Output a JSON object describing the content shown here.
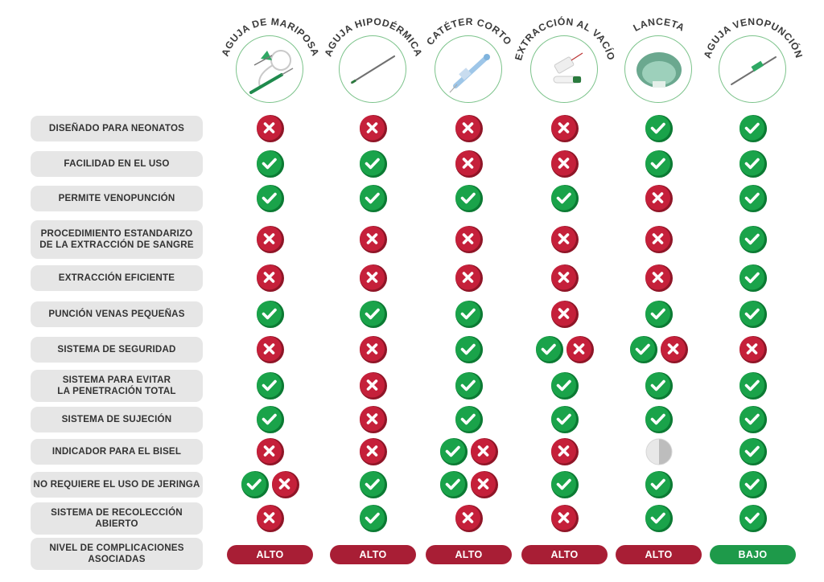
{
  "colors": {
    "yes": "#1aa34a",
    "yes_shadow": "#0c7a33",
    "no": "#c5203a",
    "no_shadow": "#8f1527",
    "partial": "#bdbdbd",
    "high": "#a81e35",
    "low": "#1e9a4a",
    "ring": "#7cc38b"
  },
  "columns": [
    {
      "name": "AGUJA DE MARIPOSA",
      "icon": "butterfly-needle-icon"
    },
    {
      "name": "AGUJA HIPODÉRMICA",
      "icon": "hypodermic-needle-icon"
    },
    {
      "name": "CATÉTER CORTO",
      "icon": "short-catheter-icon"
    },
    {
      "name": "EXTRACCIÓN AL VACÍO",
      "icon": "vacuum-extraction-icon"
    },
    {
      "name": "LANCETA",
      "icon": "lancet-icon"
    },
    {
      "name": "AGUJA VENOPUNCIÓN",
      "icon": "venipuncture-needle-icon"
    }
  ],
  "rows": [
    {
      "label": "DISEÑADO PARA NEONATOS",
      "values": [
        [
          "no"
        ],
        [
          "no"
        ],
        [
          "no"
        ],
        [
          "no"
        ],
        [
          "yes"
        ],
        [
          "yes"
        ]
      ]
    },
    {
      "label": "FACILIDAD EN EL USO",
      "values": [
        [
          "yes"
        ],
        [
          "yes"
        ],
        [
          "no"
        ],
        [
          "no"
        ],
        [
          "yes"
        ],
        [
          "yes"
        ]
      ]
    },
    {
      "label": "PERMITE VENOPUNCIÓN",
      "values": [
        [
          "yes"
        ],
        [
          "yes"
        ],
        [
          "yes"
        ],
        [
          "yes"
        ],
        [
          "no"
        ],
        [
          "yes"
        ]
      ]
    },
    {
      "label": "PROCEDIMIENTO ESTANDARIZO\nDE LA EXTRACCIÓN DE SANGRE",
      "values": [
        [
          "no"
        ],
        [
          "no"
        ],
        [
          "no"
        ],
        [
          "no"
        ],
        [
          "no"
        ],
        [
          "yes"
        ]
      ]
    },
    {
      "label": "EXTRACCIÓN EFICIENTE",
      "values": [
        [
          "no"
        ],
        [
          "no"
        ],
        [
          "no"
        ],
        [
          "no"
        ],
        [
          "no"
        ],
        [
          "yes"
        ]
      ]
    },
    {
      "label": "PUNCIÓN VENAS PEQUEÑAS",
      "values": [
        [
          "yes"
        ],
        [
          "yes"
        ],
        [
          "yes"
        ],
        [
          "no"
        ],
        [
          "yes"
        ],
        [
          "yes"
        ]
      ]
    },
    {
      "label": "SISTEMA DE SEGURIDAD",
      "values": [
        [
          "no"
        ],
        [
          "no"
        ],
        [
          "yes"
        ],
        [
          "yes",
          "no"
        ],
        [
          "yes",
          "no"
        ],
        [
          "no"
        ]
      ]
    },
    {
      "label": "SISTEMA PARA EVITAR\nLA PENETRACIÓN TOTAL",
      "values": [
        [
          "yes"
        ],
        [
          "no"
        ],
        [
          "yes"
        ],
        [
          "yes"
        ],
        [
          "yes"
        ],
        [
          "yes"
        ]
      ]
    },
    {
      "label": "SISTEMA DE SUJECIÓN",
      "values": [
        [
          "yes"
        ],
        [
          "no"
        ],
        [
          "yes"
        ],
        [
          "yes"
        ],
        [
          "yes"
        ],
        [
          "yes"
        ]
      ]
    },
    {
      "label": "INDICADOR PARA EL BISEL",
      "values": [
        [
          "no"
        ],
        [
          "no"
        ],
        [
          "yes",
          "no"
        ],
        [
          "no"
        ],
        [
          "partial"
        ],
        [
          "yes"
        ]
      ]
    },
    {
      "label": "NO REQUIERE EL USO DE JERINGA",
      "values": [
        [
          "yes",
          "no"
        ],
        [
          "yes"
        ],
        [
          "yes",
          "no"
        ],
        [
          "yes"
        ],
        [
          "yes"
        ],
        [
          "yes"
        ]
      ]
    },
    {
      "label": "SISTEMA DE RECOLECCIÓN\nABIERTO",
      "values": [
        [
          "no"
        ],
        [
          "yes"
        ],
        [
          "no"
        ],
        [
          "no"
        ],
        [
          "yes"
        ],
        [
          "yes"
        ]
      ]
    },
    {
      "label": "NIVEL DE COMPLICACIONES\nASOCIADAS",
      "levels": [
        "ALTO",
        "ALTO",
        "ALTO",
        "ALTO",
        "ALTO",
        "BAJO"
      ]
    }
  ]
}
